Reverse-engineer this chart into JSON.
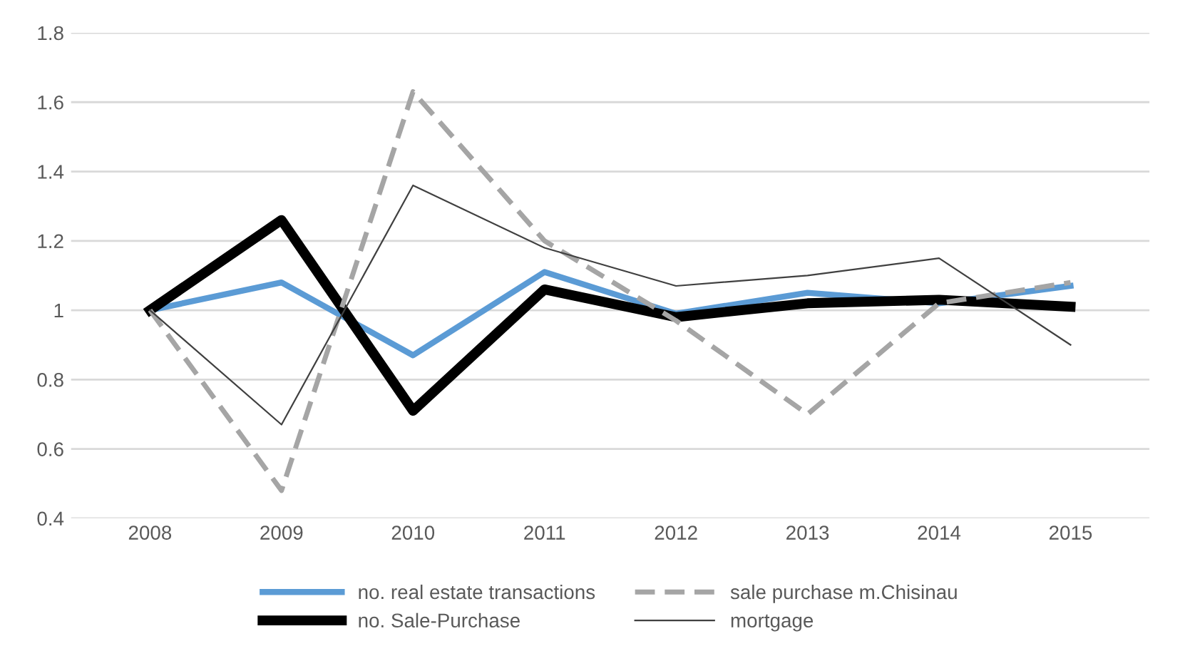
{
  "chart_data": {
    "type": "line",
    "categories": [
      "2008",
      "2009",
      "2010",
      "2011",
      "2012",
      "2013",
      "2014",
      "2015"
    ],
    "series": [
      {
        "name": "no. real estate transactions",
        "color": "#5b9bd5",
        "values": [
          1,
          1.08,
          0.87,
          1.11,
          0.99,
          1.05,
          1.02,
          1.07
        ]
      },
      {
        "name": "no. Sale-Purchase",
        "color": "#000000",
        "values": [
          1,
          1.26,
          0.71,
          1.06,
          0.98,
          1.02,
          1.03,
          1.01
        ]
      },
      {
        "name": "sale purchase m.Chisinau",
        "color": "#a5a5a5",
        "line_style": "dashed",
        "values": [
          1,
          0.48,
          1.63,
          1.2,
          0.97,
          0.7,
          1.02,
          1.08
        ]
      },
      {
        "name": "mortgage",
        "color": "#404040",
        "values": [
          1,
          0.67,
          1.36,
          1.18,
          1.07,
          1.1,
          1.15,
          0.9
        ]
      }
    ],
    "ylim": [
      0.4,
      1.8
    ],
    "yticks": [
      0.4,
      0.6,
      0.8,
      {
        "value": 1,
        "label": "1"
      },
      1.2,
      1.4,
      1.6,
      1.8
    ],
    "grid": "y",
    "legend": "bottom",
    "marker": "none",
    "line_style": "solid"
  }
}
